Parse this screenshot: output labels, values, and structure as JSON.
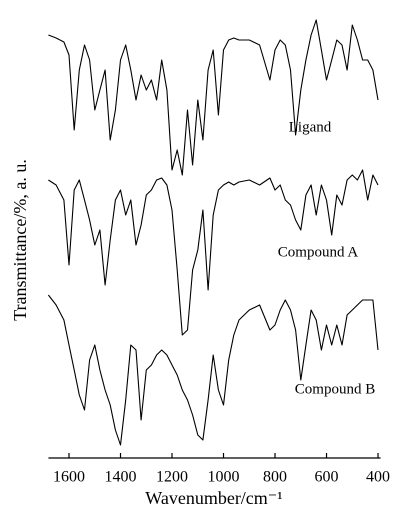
{
  "chart_data": {
    "type": "line",
    "x_label": "Wavenumber/cm⁻¹",
    "y_label": "Transmittance/%, a. u.",
    "x": [
      1680,
      1650,
      1620,
      1600,
      1580,
      1560,
      1540,
      1520,
      1500,
      1480,
      1460,
      1440,
      1420,
      1400,
      1380,
      1360,
      1340,
      1320,
      1300,
      1280,
      1260,
      1240,
      1220,
      1200,
      1180,
      1160,
      1140,
      1120,
      1100,
      1080,
      1060,
      1040,
      1020,
      1000,
      980,
      960,
      940,
      900,
      860,
      820,
      800,
      780,
      760,
      740,
      720,
      700,
      680,
      660,
      640,
      620,
      600,
      580,
      560,
      540,
      520,
      500,
      480,
      460,
      440,
      420,
      400
    ],
    "series": [
      {
        "name": "Ligand",
        "color": "#000000",
        "values": [
          423,
          420,
          416,
          403,
          328,
          388,
          413,
          398,
          348,
          368,
          388,
          318,
          348,
          398,
          413,
          388,
          358,
          383,
          368,
          378,
          358,
          398,
          368,
          288,
          308,
          283,
          348,
          293,
          358,
          318,
          388,
          408,
          343,
          408,
          418,
          420,
          418,
          418,
          413,
          378,
          408,
          418,
          413,
          388,
          323,
          368,
          398,
          423,
          438,
          408,
          378,
          398,
          418,
          413,
          388,
          433,
          418,
          398,
          398,
          388,
          358
        ]
      },
      {
        "name": "Compound A",
        "color": "#000000",
        "values": [
          278,
          273,
          258,
          193,
          268,
          278,
          258,
          238,
          213,
          228,
          173,
          218,
          258,
          268,
          243,
          258,
          213,
          233,
          263,
          268,
          278,
          280,
          273,
          248,
          188,
          123,
          128,
          188,
          208,
          248,
          168,
          243,
          268,
          273,
          276,
          273,
          276,
          278,
          273,
          280,
          268,
          273,
          258,
          253,
          238,
          228,
          263,
          273,
          243,
          273,
          258,
          223,
          263,
          253,
          278,
          283,
          278,
          288,
          258,
          283,
          273
        ]
      },
      {
        "name": "Compound B",
        "color": "#000000",
        "values": [
          163,
          153,
          138,
          113,
          88,
          63,
          48,
          98,
          113,
          88,
          68,
          53,
          28,
          13,
          58,
          113,
          108,
          38,
          88,
          93,
          103,
          108,
          103,
          93,
          83,
          68,
          58,
          43,
          23,
          18,
          58,
          103,
          68,
          53,
          98,
          123,
          138,
          148,
          153,
          128,
          133,
          148,
          158,
          148,
          128,
          78,
          113,
          148,
          138,
          108,
          133,
          113,
          133,
          113,
          143,
          148,
          153,
          158,
          158,
          158,
          108
        ]
      }
    ],
    "xlim": [
      1680,
      390
    ],
    "ylim": [
      0,
      453
    ],
    "xticks": [
      1600,
      1400,
      1200,
      1000,
      800,
      600,
      400
    ]
  }
}
